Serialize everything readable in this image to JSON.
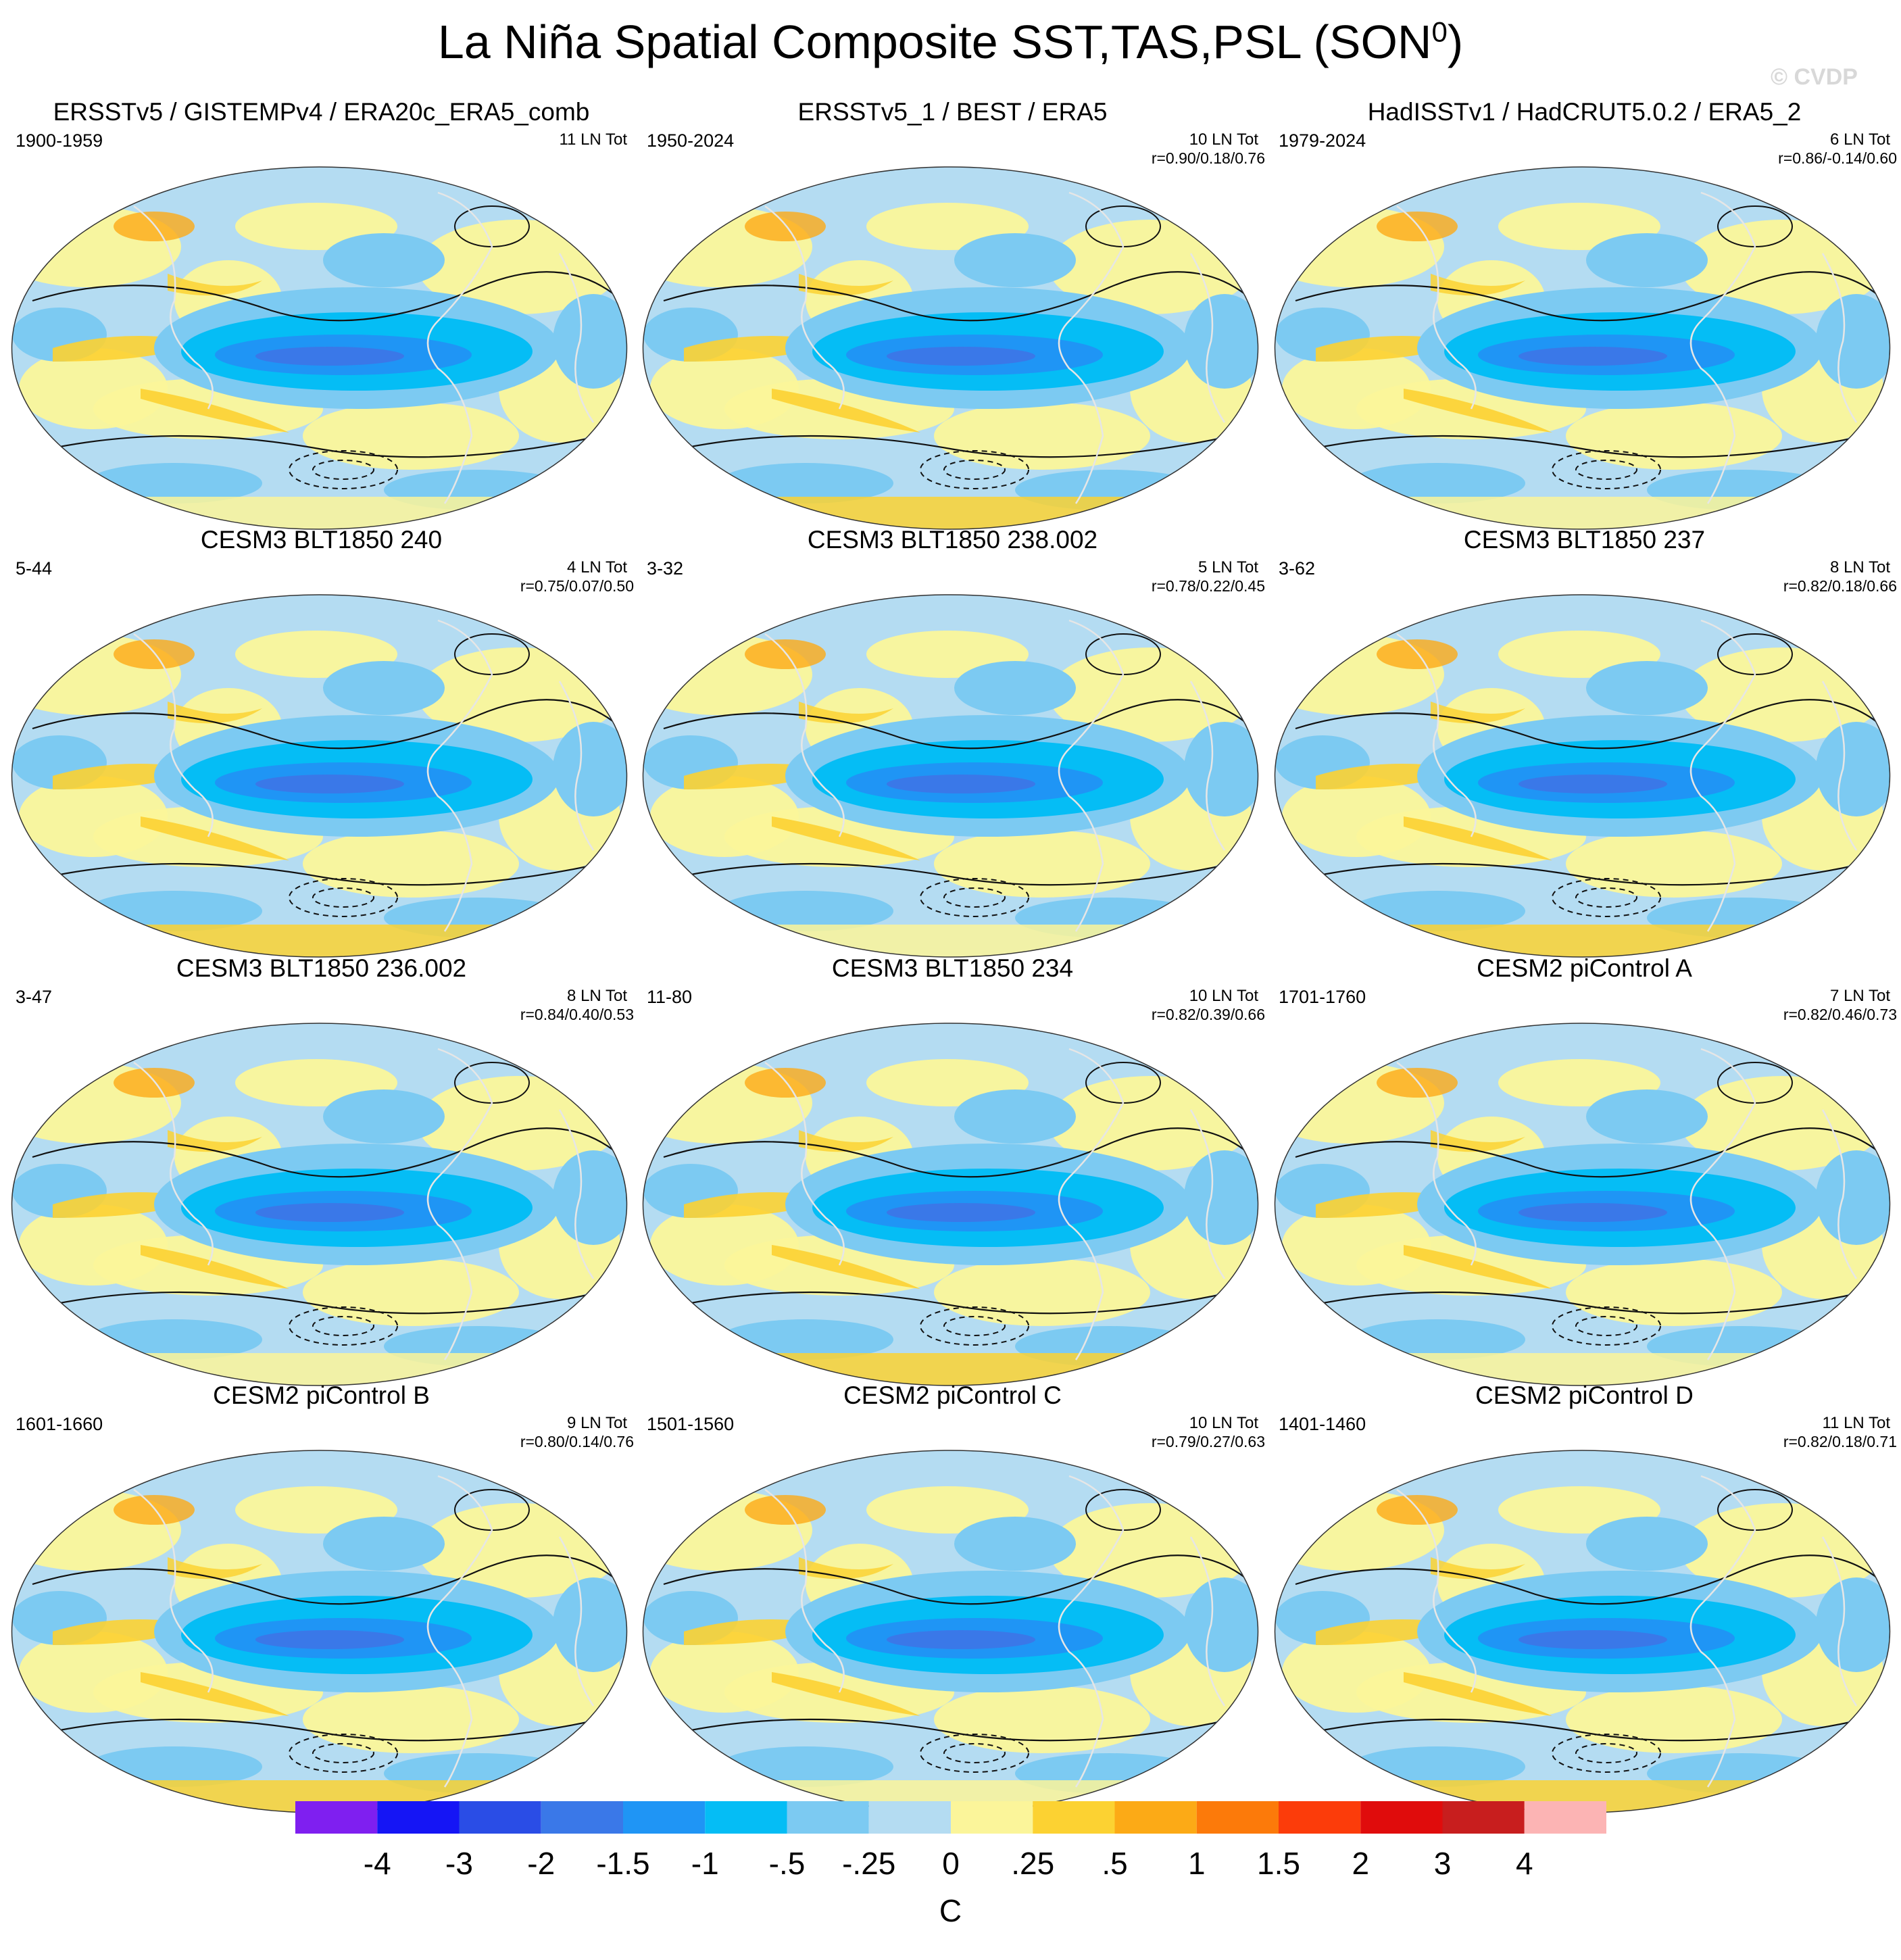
{
  "figure": {
    "title_main": "La Niña Spatial Composite SST,TAS,PSL (SON",
    "title_sup": "0",
    "title_close": ")",
    "watermark": "© CVDP"
  },
  "panels": [
    {
      "title": "ERSSTv5 / GISTEMPv4 / ERA20c_ERA5_comb",
      "period": "1900-1959",
      "count": "11 LN Tot",
      "corr": ""
    },
    {
      "title": "ERSSTv5_1 / BEST / ERA5",
      "period": "1950-2024",
      "count": "10 LN Tot",
      "corr": "r=0.90/0.18/0.76"
    },
    {
      "title": "HadISSTv1 / HadCRUT5.0.2 / ERA5_2",
      "period": "1979-2024",
      "count": "6 LN Tot",
      "corr": "r=0.86/-0.14/0.60"
    },
    {
      "title": "CESM3 BLT1850 240",
      "period": "5-44",
      "count": "4 LN Tot",
      "corr": "r=0.75/0.07/0.50"
    },
    {
      "title": "CESM3 BLT1850 238.002",
      "period": "3-32",
      "count": "5 LN Tot",
      "corr": "r=0.78/0.22/0.45"
    },
    {
      "title": "CESM3 BLT1850 237",
      "period": "3-62",
      "count": "8 LN Tot",
      "corr": "r=0.82/0.18/0.66"
    },
    {
      "title": "CESM3 BLT1850 236.002",
      "period": "3-47",
      "count": "8 LN Tot",
      "corr": "r=0.84/0.40/0.53"
    },
    {
      "title": "CESM3 BLT1850 234",
      "period": "11-80",
      "count": "10 LN Tot",
      "corr": "r=0.82/0.39/0.66"
    },
    {
      "title": "CESM2 piControl A",
      "period": "1701-1760",
      "count": "7 LN Tot",
      "corr": "r=0.82/0.46/0.73"
    },
    {
      "title": "CESM2 piControl B",
      "period": "1601-1660",
      "count": "9 LN Tot",
      "corr": "r=0.80/0.14/0.76"
    },
    {
      "title": "CESM2 piControl C",
      "period": "1501-1560",
      "count": "10 LN Tot",
      "corr": "r=0.79/0.27/0.63"
    },
    {
      "title": "CESM2 piControl D",
      "period": "1401-1460",
      "count": "11 LN Tot",
      "corr": "r=0.82/0.18/0.71"
    }
  ],
  "colorbar": {
    "colors": [
      "#7f1ff0",
      "#1515f5",
      "#2a4de6",
      "#3a78e8",
      "#1f95f5",
      "#05bdf5",
      "#7ccaf2",
      "#b4dcf2",
      "#fbf59a",
      "#fcd232",
      "#fcaa16",
      "#fc7a0a",
      "#fc3c0a",
      "#e00c0c",
      "#c81e1e",
      "#fcb4b4"
    ],
    "labels": [
      "-4",
      "-3",
      "-2",
      "-1.5",
      "-1",
      "-.5",
      "-.25",
      "0",
      ".25",
      ".5",
      "1",
      "1.5",
      "2",
      "3",
      "4"
    ],
    "unit": "C"
  }
}
